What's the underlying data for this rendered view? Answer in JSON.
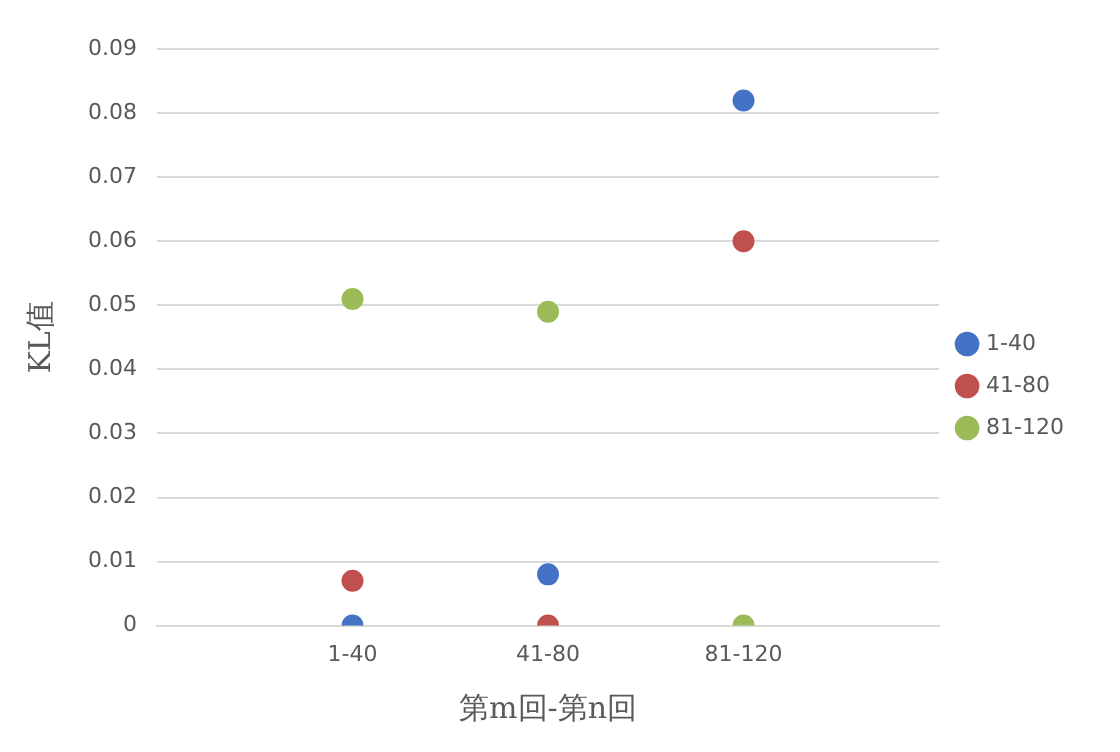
{
  "chart_data": {
    "type": "scatter",
    "xlabel": "第m回-第n回",
    "ylabel": "KL值",
    "categories": [
      null,
      "1-40",
      "41-80",
      "81-120",
      null
    ],
    "series": [
      {
        "name": "1-40",
        "color": "#4472c4",
        "values": [
          null,
          0,
          0.008,
          0.082,
          null
        ]
      },
      {
        "name": "41-80",
        "color": "#c0504d",
        "values": [
          null,
          0.007,
          0,
          0.06,
          null
        ]
      },
      {
        "name": "81-120",
        "color": "#9bbb59",
        "values": [
          null,
          0.051,
          0.049,
          0,
          null
        ]
      }
    ],
    "ylim": [
      0,
      0.09
    ],
    "yticks": [
      0,
      0.01,
      0.02,
      0.03,
      0.04,
      0.05,
      0.06,
      0.07,
      0.08,
      0.09
    ],
    "grid": "y",
    "legend": "right",
    "marker": "circle"
  }
}
